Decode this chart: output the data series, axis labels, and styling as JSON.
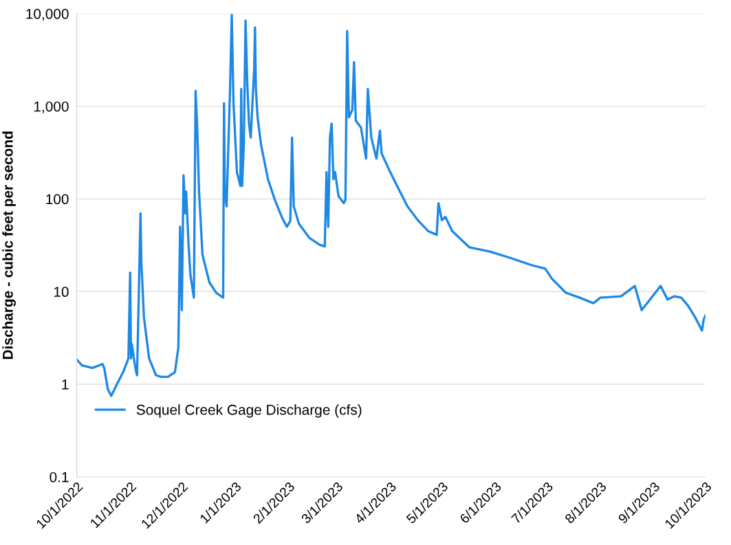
{
  "chart_data": {
    "type": "line",
    "ylabel": "Discharge - cubic feet per second",
    "log": "y",
    "grid": "y",
    "legend": "bottom left",
    "marker": "none",
    "line_style": "solid",
    "ylim": [
      0.1,
      10000
    ],
    "yticks": [
      {
        "value": 0.1,
        "label": "0.1"
      },
      1,
      10,
      100,
      {
        "value": 1000,
        "label": "1,000"
      },
      {
        "value": 10000,
        "label": "10,000"
      }
    ],
    "xlim": [
      "2022-10-01",
      "2023-10-01"
    ],
    "xticks": [
      {
        "value": "2022-10-01",
        "label": "10/1/2022"
      },
      {
        "value": "2022-11-01",
        "label": "11/1/2022"
      },
      {
        "value": "2022-12-01",
        "label": "12/1/2022"
      },
      {
        "value": "2023-01-01",
        "label": "1/1/2023"
      },
      {
        "value": "2023-02-01",
        "label": "2/1/2023"
      },
      {
        "value": "2023-03-01",
        "label": "3/1/2023"
      },
      {
        "value": "2023-04-01",
        "label": "4/1/2023"
      },
      {
        "value": "2023-05-01",
        "label": "5/1/2023"
      },
      {
        "value": "2023-06-01",
        "label": "6/1/2023"
      },
      {
        "value": "2023-07-01",
        "label": "7/1/2023"
      },
      {
        "value": "2023-08-01",
        "label": "8/1/2023"
      },
      {
        "value": "2023-09-01",
        "label": "9/1/2023"
      },
      {
        "value": "2023-10-01",
        "label": "10/1/2023"
      }
    ],
    "series": [
      {
        "name": "Soquel Creek Gage Discharge (cfs)",
        "color": "#1e88e5",
        "x": [
          "2022-10-01",
          "2022-10-04",
          "2022-10-10",
          "2022-10-16",
          "2022-10-17",
          "2022-10-19",
          "2022-10-21",
          "2022-10-24",
          "2022-10-28",
          "2022-10-31",
          "2022-11-01",
          "2022-11-01T12:00",
          "2022-11-02",
          "2022-11-04",
          "2022-11-05",
          "2022-11-06",
          "2022-11-07",
          "2022-11-07T12:00",
          "2022-11-09",
          "2022-11-12",
          "2022-11-16",
          "2022-11-19",
          "2022-11-23",
          "2022-11-27",
          "2022-11-29",
          "2022-11-30",
          "2022-12-01",
          "2022-12-02",
          "2022-12-03",
          "2022-12-03T12:00",
          "2022-12-05",
          "2022-12-06",
          "2022-12-08",
          "2022-12-09",
          "2022-12-10",
          "2022-12-11",
          "2022-12-13",
          "2022-12-17",
          "2022-12-21",
          "2022-12-25",
          "2022-12-25T12:00",
          "2022-12-26",
          "2022-12-27",
          "2022-12-29",
          "2022-12-30",
          "2022-12-31",
          "2023-01-02",
          "2023-01-04",
          "2023-01-04T12:00",
          "2023-01-05",
          "2023-01-06",
          "2023-01-07",
          "2023-01-08",
          "2023-01-09",
          "2023-01-10",
          "2023-01-12",
          "2023-01-12T12:00",
          "2023-01-13",
          "2023-01-14",
          "2023-01-16",
          "2023-01-20",
          "2023-01-24",
          "2023-01-28",
          "2023-01-31",
          "2023-02-02",
          "2023-02-03",
          "2023-02-04",
          "2023-02-07",
          "2023-02-13",
          "2023-02-19",
          "2023-02-22",
          "2023-02-23",
          "2023-02-24",
          "2023-02-25",
          "2023-02-26",
          "2023-02-27",
          "2023-02-28",
          "2023-03-02",
          "2023-03-05",
          "2023-03-06",
          "2023-03-07",
          "2023-03-08",
          "2023-03-10",
          "2023-03-11",
          "2023-03-12",
          "2023-03-15",
          "2023-03-18",
          "2023-03-19",
          "2023-03-21",
          "2023-03-24",
          "2023-03-26",
          "2023-03-27",
          "2023-04-01",
          "2023-04-05",
          "2023-04-11",
          "2023-04-17",
          "2023-04-23",
          "2023-04-28",
          "2023-04-29",
          "2023-05-01",
          "2023-05-03",
          "2023-05-07",
          "2023-05-17",
          "2023-05-29",
          "2023-06-10",
          "2023-06-22",
          "2023-06-30",
          "2023-07-04",
          "2023-07-12",
          "2023-07-20",
          "2023-07-28",
          "2023-08-01",
          "2023-08-13",
          "2023-08-21",
          "2023-08-25",
          "2023-09-05",
          "2023-09-09",
          "2023-09-13",
          "2023-09-17",
          "2023-09-21",
          "2023-09-25",
          "2023-09-29",
          "2023-09-30",
          "2023-10-01"
        ],
        "values": [
          1.85,
          1.6,
          1.5,
          1.65,
          1.48,
          0.89,
          0.75,
          0.97,
          1.36,
          1.9,
          16,
          1.9,
          2.7,
          1.5,
          1.25,
          8.9,
          70,
          21,
          5.3,
          1.9,
          1.25,
          1.2,
          1.2,
          1.35,
          2.5,
          50,
          6.3,
          180,
          70,
          120,
          30,
          15,
          8.6,
          1470,
          550,
          120,
          25,
          12.6,
          9.7,
          8.6,
          1080,
          120,
          83,
          1540,
          9700,
          1080,
          195,
          138,
          1540,
          138,
          385,
          8400,
          1800,
          650,
          460,
          2500,
          7100,
          1540,
          760,
          385,
          164,
          98,
          64,
          50,
          58,
          460,
          83,
          54,
          38,
          32,
          30.7,
          195,
          50,
          460,
          650,
          164,
          195,
          107,
          90,
          98,
          6500,
          760,
          915,
          3000,
          700,
          590,
          273,
          1540,
          460,
          273,
          545,
          310,
          195,
          138,
          83,
          59,
          45,
          41,
          90,
          59,
          64,
          45,
          30,
          27,
          23,
          19.3,
          17.7,
          13.7,
          9.7,
          8.6,
          7.5,
          8.6,
          8.9,
          11.5,
          6.3,
          11.5,
          8.2,
          8.9,
          8.6,
          7,
          5.3,
          3.8,
          5,
          5.5
        ]
      }
    ]
  }
}
